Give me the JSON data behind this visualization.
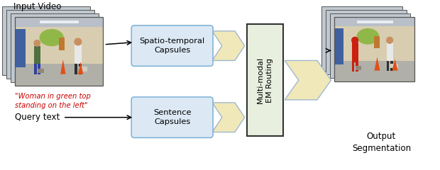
{
  "input_video_label": "Input Video",
  "query_text_label": "Query text",
  "query_italic_text": "\"Woman in green top\nstanding on the left\"",
  "box1_text": "Spatio-temporal\nCapsules",
  "box2_text": "Sentence\nCapsules",
  "center_box_text": "Multi-modal\nEM Routing",
  "output_label": "Output\nSegmentation",
  "box_fill": "#dce9f5",
  "box_edge": "#7ab0d5",
  "center_fill": "#e8efdf",
  "center_edge": "#333333",
  "arrow_fill": "#f0e8b8",
  "arrow_edge": "#a0b8d0",
  "query_color": "#cc0000",
  "bg_color": "#ffffff",
  "fig_width": 6.2,
  "fig_height": 2.4,
  "dpi": 100
}
